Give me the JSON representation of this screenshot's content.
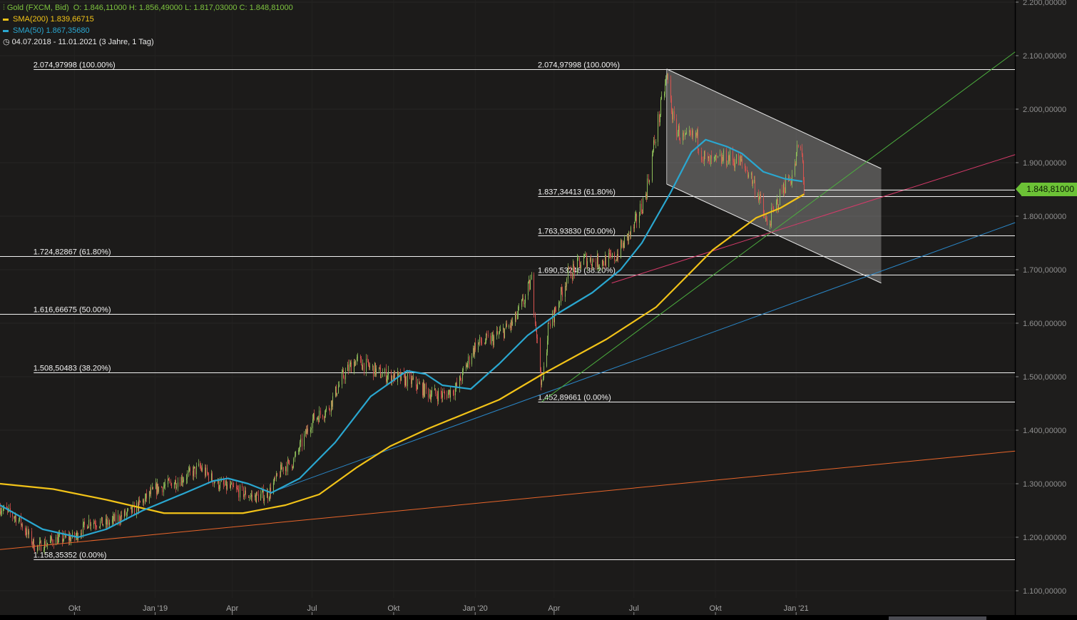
{
  "legend": {
    "instrument": "Gold (FXCM, Bid)",
    "ohlc": "O: 1.846,11000  H: 1.856,49000  L: 1.817,03000  C: 1.848,81000",
    "sma200": "SMA(200)  1.839,66715",
    "sma50": "SMA(50)  1.867,35680",
    "range": "04.07.2018 - 11.01.2021   (3 Jahre, 1 Tag)"
  },
  "current_price_label": "1.848,81000",
  "colors": {
    "up": "#8fbf5a",
    "down": "#d9534f",
    "sma200": "#f2c318",
    "sma50": "#2aa7d0",
    "accent": "#6cc236"
  },
  "chart_data": {
    "type": "candlestick",
    "title": "Gold (FXCM, Bid)",
    "x_unit": "days since 04.07.2018",
    "ylim": [
      1070,
      2200
    ],
    "y_ticks": [
      {
        "value": 2200,
        "label": "2.200,00000"
      },
      {
        "value": 2100,
        "label": "2.100,00000"
      },
      {
        "value": 2000,
        "label": "2.000,00000"
      },
      {
        "value": 1900,
        "label": "1.900,00000"
      },
      {
        "value": 1800,
        "label": "1.800,00000"
      },
      {
        "value": 1700,
        "label": "1.700,00000"
      },
      {
        "value": 1600,
        "label": "1.600,00000"
      },
      {
        "value": 1500,
        "label": "1.500,00000"
      },
      {
        "value": 1400,
        "label": "1.400,00000"
      },
      {
        "value": 1300,
        "label": "1.300,00000"
      },
      {
        "value": 1200,
        "label": "1.200,00000"
      },
      {
        "value": 1100,
        "label": "1.100,00000"
      }
    ],
    "x_ticks": [
      {
        "day": 84,
        "label": "Okt"
      },
      {
        "day": 175,
        "label": "Jan '19"
      },
      {
        "day": 262,
        "label": "Apr"
      },
      {
        "day": 352,
        "label": "Jul"
      },
      {
        "day": 444,
        "label": "Okt"
      },
      {
        "day": 536,
        "label": "Jan '20"
      },
      {
        "day": 625,
        "label": "Apr"
      },
      {
        "day": 715,
        "label": "Jul"
      },
      {
        "day": 807,
        "label": "Okt"
      },
      {
        "day": 898,
        "label": "Jan '21"
      }
    ],
    "price_path": [
      [
        0,
        1255
      ],
      [
        20,
        1235
      ],
      [
        40,
        1180
      ],
      [
        60,
        1195
      ],
      [
        84,
        1200
      ],
      [
        100,
        1230
      ],
      [
        120,
        1225
      ],
      [
        150,
        1250
      ],
      [
        175,
        1290
      ],
      [
        200,
        1305
      ],
      [
        225,
        1330
      ],
      [
        245,
        1300
      ],
      [
        262,
        1290
      ],
      [
        285,
        1275
      ],
      [
        302,
        1280
      ],
      [
        318,
        1330
      ],
      [
        330,
        1340
      ],
      [
        352,
        1420
      ],
      [
        370,
        1440
      ],
      [
        386,
        1500
      ],
      [
        400,
        1530
      ],
      [
        414,
        1520
      ],
      [
        430,
        1505
      ],
      [
        444,
        1500
      ],
      [
        465,
        1490
      ],
      [
        483,
        1470
      ],
      [
        500,
        1465
      ],
      [
        515,
        1480
      ],
      [
        536,
        1560
      ],
      [
        555,
        1570
      ],
      [
        579,
        1600
      ],
      [
        590,
        1640
      ],
      [
        599,
        1680
      ],
      [
        605,
        1580
      ],
      [
        611,
        1480
      ],
      [
        618,
        1590
      ],
      [
        625,
        1620
      ],
      [
        640,
        1690
      ],
      [
        660,
        1720
      ],
      [
        675,
        1715
      ],
      [
        692,
        1720
      ],
      [
        700,
        1740
      ],
      [
        715,
        1780
      ],
      [
        728,
        1840
      ],
      [
        740,
        1960
      ],
      [
        752,
        2060
      ],
      [
        760,
        1970
      ],
      [
        772,
        1940
      ],
      [
        785,
        1950
      ],
      [
        796,
        1900
      ],
      [
        807,
        1900
      ],
      [
        820,
        1910
      ],
      [
        835,
        1900
      ],
      [
        845,
        1880
      ],
      [
        855,
        1840
      ],
      [
        865,
        1780
      ],
      [
        875,
        1820
      ],
      [
        885,
        1860
      ],
      [
        895,
        1880
      ],
      [
        901,
        1940
      ],
      [
        905,
        1900
      ],
      [
        907,
        1849
      ]
    ],
    "series": [
      {
        "name": "SMA(200)",
        "value": "1.839,66715",
        "points": [
          [
            0,
            1300
          ],
          [
            60,
            1290
          ],
          [
            120,
            1270
          ],
          [
            185,
            1245
          ],
          [
            274,
            1245
          ],
          [
            322,
            1260
          ],
          [
            360,
            1280
          ],
          [
            402,
            1330
          ],
          [
            440,
            1370
          ],
          [
            483,
            1403
          ],
          [
            563,
            1457
          ],
          [
            611,
            1504
          ],
          [
            684,
            1570
          ],
          [
            740,
            1630
          ],
          [
            770,
            1680
          ],
          [
            804,
            1737
          ],
          [
            853,
            1797
          ],
          [
            880,
            1815
          ],
          [
            907,
            1841
          ]
        ]
      },
      {
        "name": "SMA(50)",
        "value": "1.867,35680",
        "points": [
          [
            0,
            1260
          ],
          [
            48,
            1215
          ],
          [
            88,
            1200
          ],
          [
            120,
            1215
          ],
          [
            161,
            1250
          ],
          [
            209,
            1283
          ],
          [
            240,
            1305
          ],
          [
            257,
            1310
          ],
          [
            280,
            1300
          ],
          [
            306,
            1283
          ],
          [
            338,
            1310
          ],
          [
            378,
            1377
          ],
          [
            418,
            1463
          ],
          [
            459,
            1511
          ],
          [
            480,
            1505
          ],
          [
            499,
            1484
          ],
          [
            531,
            1477
          ],
          [
            563,
            1524
          ],
          [
            595,
            1577
          ],
          [
            628,
            1617
          ],
          [
            668,
            1657
          ],
          [
            700,
            1700
          ],
          [
            724,
            1750
          ],
          [
            756,
            1843
          ],
          [
            780,
            1920
          ],
          [
            796,
            1943
          ],
          [
            820,
            1930
          ],
          [
            837,
            1917
          ],
          [
            861,
            1883
          ],
          [
            885,
            1870
          ],
          [
            905,
            1865
          ]
        ]
      }
    ],
    "trend_lines": [
      {
        "name": "long-term-support",
        "color": "#e8652a",
        "points": [
          [
            0,
            1177
          ],
          [
            1145,
            1361
          ]
        ]
      },
      {
        "name": "blue-support",
        "color": "#2a87c8",
        "points": [
          [
            306,
            1284
          ],
          [
            1145,
            1788
          ]
        ]
      },
      {
        "name": "green-support",
        "color": "#4caf3e",
        "points": [
          [
            611,
            1453
          ],
          [
            1145,
            2107
          ]
        ]
      },
      {
        "name": "pink-support",
        "color": "#d63a6a",
        "points": [
          [
            690,
            1675
          ],
          [
            1145,
            1915
          ]
        ]
      }
    ],
    "channel": {
      "upper": [
        [
          752,
          2075
        ],
        [
          994,
          1889
        ]
      ],
      "lower": [
        [
          752,
          1860
        ],
        [
          994,
          1675
        ]
      ]
    },
    "fibonacci_levels": [
      {
        "value": 2074.97998,
        "label": "2.074,97998 (100.00%)",
        "start_day": 38,
        "label_days": [
          38,
          607
        ]
      },
      {
        "value": 1724.82867,
        "label": "1.724,82867 (61.80%)",
        "start_day": 0,
        "label_days": [
          38
        ]
      },
      {
        "value": 1616.66675,
        "label": "1.616,66675 (50.00%)",
        "start_day": 0,
        "label_days": [
          38
        ]
      },
      {
        "value": 1508.50483,
        "label": "1.508,50483 (38.20%)",
        "start_day": 38,
        "label_days": [
          38
        ]
      },
      {
        "value": 1158.35352,
        "label": "1.158,35352 (0.00%)",
        "start_day": 38,
        "label_days": [
          38
        ]
      },
      {
        "value": 1837.34413,
        "label": "1.837,34413 (61.80%)",
        "start_day": 607,
        "label_days": [
          607
        ]
      },
      {
        "value": 1763.9383,
        "label": "1.763,93830 (50.00%)",
        "start_day": 607,
        "label_days": [
          607
        ]
      },
      {
        "value": 1690.53246,
        "label": "1.690,53246 (38.20%)",
        "start_day": 607,
        "label_days": [
          607
        ]
      },
      {
        "value": 1452.89661,
        "label": "1.452,89661 (0.00%)",
        "start_day": 607,
        "label_days": [
          607
        ]
      }
    ],
    "last_close": 1848.81
  }
}
